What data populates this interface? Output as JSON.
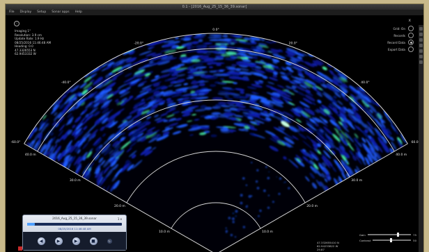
{
  "window": {
    "title": "0.1 - [2016_Aug_25_15_36_39.sonar]"
  },
  "menu": [
    "File",
    "Display",
    "Setup",
    "Sonar apps",
    "Help"
  ],
  "info": {
    "lines": [
      "Imaging 1°",
      "Resolution: 3.9 cm",
      "Update Rate: 1.9 Hz",
      "08/25/2016 11:46:48 AM",
      "Heading: 0.0",
      "47.3326553 N",
      "62.9453332 W"
    ]
  },
  "right_panel": {
    "close": "x",
    "items": [
      "Grid: On",
      "Records",
      "Record Data",
      "Export Data"
    ]
  },
  "sonar": {
    "bearing_labels": [
      "-60.0°",
      "-40.0°",
      "-20.0°",
      "0.0°",
      "20.0°",
      "40.0°",
      "60.0°"
    ],
    "range_labels": [
      "10.0 m",
      "20.0 m",
      "30.0 m",
      "40.0 m"
    ],
    "colors": {
      "background": "#000000",
      "grid": "#d8d8d8",
      "echo_low": "#0a1caa",
      "echo_mid": "#1f5cff",
      "echo_high": "#46e8a0"
    }
  },
  "player": {
    "file": "2016_Aug_25_15_36_39.sonar",
    "speed": "1 x",
    "timestamp": "08/25/2016 11:46:48 AM",
    "progress": 0.08,
    "controls": [
      "rewind",
      "play",
      "forward",
      "stop",
      "loop"
    ]
  },
  "bottom_right": {
    "gain_label": "Gain",
    "gain_value": "75",
    "contrast_label": "Contrast",
    "contrast_value": "50"
  },
  "coords": [
    "47.332655410 N",
    "62.94233822 W",
    "29.87"
  ]
}
